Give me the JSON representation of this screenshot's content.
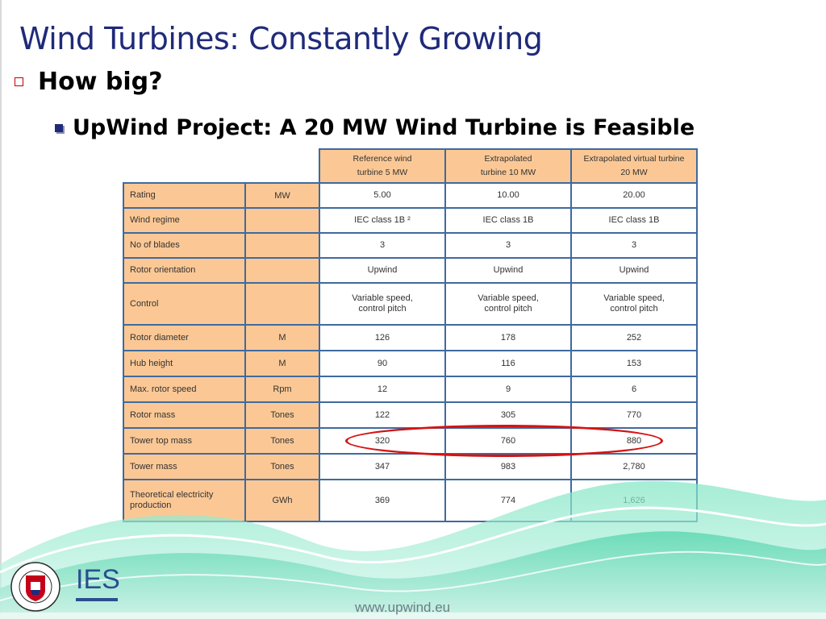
{
  "slide": {
    "title": "Wind Turbines: Constantly Growing",
    "bullet1": "How big?",
    "bullet2": "UpWind Project: A 20 MW Wind Turbine is Feasible",
    "footer_url": "www.upwind.eu",
    "logo_text": "IES",
    "crest_text": "THE UNIVERSITY OF EDINBURGH"
  },
  "table": {
    "headers": [
      [
        "Reference wind",
        "turbine 5 MW"
      ],
      [
        "Extrapolated",
        "turbine 10 MW"
      ],
      [
        "Extrapolated virtual turbine",
        "20 MW"
      ]
    ],
    "rows": [
      {
        "label": "Rating",
        "unit": "MW",
        "values": [
          "5.00",
          "10.00",
          "20.00"
        ]
      },
      {
        "label": "Wind regime",
        "unit": "",
        "values": [
          "IEC class 1B ²",
          "IEC class 1B",
          "IEC class 1B"
        ]
      },
      {
        "label": "No of blades",
        "unit": "",
        "values": [
          "3",
          "3",
          "3"
        ]
      },
      {
        "label": "Rotor orientation",
        "unit": "",
        "values": [
          "Upwind",
          "Upwind",
          "Upwind"
        ]
      },
      {
        "label": "Control",
        "unit": "",
        "values": [
          "Variable speed,\ncontrol pitch",
          "Variable speed,\ncontrol pitch",
          "Variable speed,\ncontrol pitch"
        ]
      },
      {
        "label": "Rotor diameter",
        "unit": "M",
        "values": [
          "126",
          "178",
          "252"
        ]
      },
      {
        "label": "Hub height",
        "unit": "M",
        "values": [
          "90",
          "116",
          "153"
        ]
      },
      {
        "label": "Max. rotor speed",
        "unit": "Rpm",
        "values": [
          "12",
          "9",
          "6"
        ]
      },
      {
        "label": "Rotor mass",
        "unit": "Tones",
        "values": [
          "122",
          "305",
          "770"
        ]
      },
      {
        "label": "Tower top mass",
        "unit": "Tones",
        "values": [
          "320",
          "760",
          "880"
        ]
      },
      {
        "label": "Tower mass",
        "unit": "Tones",
        "values": [
          "347",
          "983",
          "2,780"
        ]
      },
      {
        "label": "Theoretical electricity\nproduction",
        "unit": "GWh",
        "values": [
          "369",
          "774",
          "1,626"
        ]
      }
    ]
  },
  "colors": {
    "title": "#1f2a7a",
    "table_header_bg": "#fbc895",
    "table_border": "#3f6a9e",
    "highlight": "#d41414"
  }
}
